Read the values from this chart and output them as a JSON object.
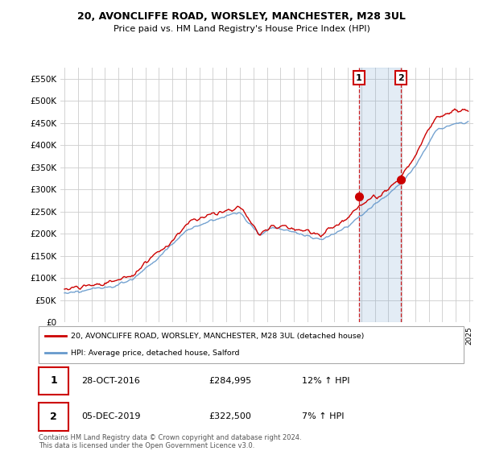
{
  "title": "20, AVONCLIFFE ROAD, WORSLEY, MANCHESTER, M28 3UL",
  "subtitle": "Price paid vs. HM Land Registry's House Price Index (HPI)",
  "legend_line1": "20, AVONCLIFFE ROAD, WORSLEY, MANCHESTER, M28 3UL (detached house)",
  "legend_line2": "HPI: Average price, detached house, Salford",
  "sale1_date": "28-OCT-2016",
  "sale1_price": "£284,995",
  "sale1_hpi": "12% ↑ HPI",
  "sale2_date": "05-DEC-2019",
  "sale2_price": "£322,500",
  "sale2_hpi": "7% ↑ HPI",
  "footnote": "Contains HM Land Registry data © Crown copyright and database right 2024.\nThis data is licensed under the Open Government Licence v3.0.",
  "red_color": "#cc0000",
  "blue_color": "#6699cc",
  "ylim": [
    0,
    575000
  ],
  "yticks": [
    0,
    50000,
    100000,
    150000,
    200000,
    250000,
    300000,
    350000,
    400000,
    450000,
    500000,
    550000
  ],
  "sale1_x": 2016.83,
  "sale1_y": 284995,
  "sale2_x": 2019.92,
  "sale2_y": 322500,
  "xmin": 1994.7,
  "xmax": 2025.3
}
